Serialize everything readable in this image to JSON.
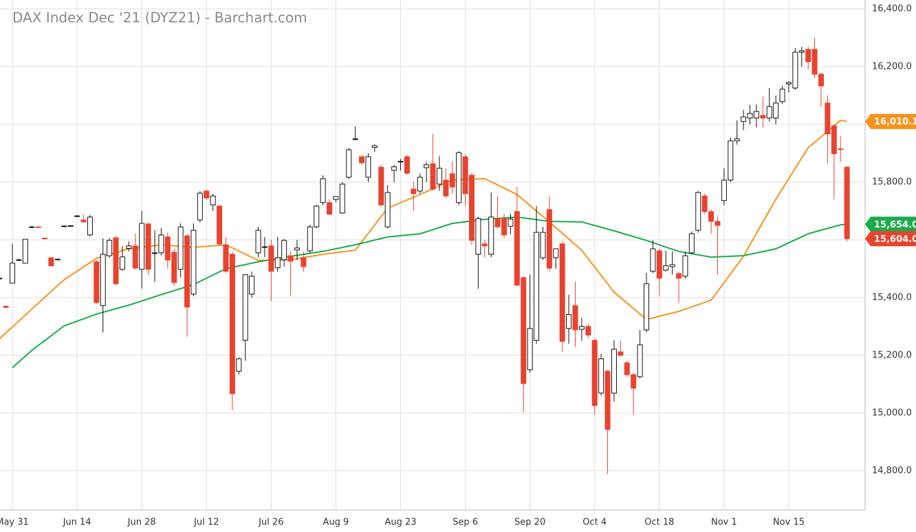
{
  "chart_data": {
    "type": "candlestick",
    "title": "DAX Index Dec '21 (DYZ21) - Barchart.com",
    "categories": [
      "May 27",
      "May 28",
      "May 31",
      "Jun 1",
      "Jun 2",
      "Jun 3",
      "Jun 4",
      "Jun 7",
      "Jun 8",
      "Jun 9",
      "Jun 10",
      "Jun 11",
      "Jun 14",
      "Jun 15",
      "Jun 16",
      "Jun 17",
      "Jun 18",
      "Jun 21",
      "Jun 22",
      "Jun 23",
      "Jun 24",
      "Jun 25",
      "Jun 28",
      "Jun 29",
      "Jun 30",
      "Jul 1",
      "Jul 2",
      "Jul 5",
      "Jul 6",
      "Jul 7",
      "Jul 8",
      "Jul 9",
      "Jul 12",
      "Jul 13",
      "Jul 14",
      "Jul 15",
      "Jul 16",
      "Jul 19",
      "Jul 20",
      "Jul 21",
      "Jul 22",
      "Jul 23",
      "Jul 26",
      "Jul 27",
      "Jul 28",
      "Jul 29",
      "Jul 30",
      "Aug 2",
      "Aug 3",
      "Aug 4",
      "Aug 5",
      "Aug 6",
      "Aug 9",
      "Aug 10",
      "Aug 11",
      "Aug 12",
      "Aug 13",
      "Aug 16",
      "Aug 17",
      "Aug 18",
      "Aug 19",
      "Aug 20",
      "Aug 23",
      "Aug 24",
      "Aug 25",
      "Aug 26",
      "Aug 27",
      "Aug 30",
      "Aug 31",
      "Sep 1",
      "Sep 2",
      "Sep 3",
      "Sep 6",
      "Sep 7",
      "Sep 8",
      "Sep 9",
      "Sep 10",
      "Sep 13",
      "Sep 14",
      "Sep 15",
      "Sep 16",
      "Sep 17",
      "Sep 20",
      "Sep 21",
      "Sep 22",
      "Sep 23",
      "Sep 24",
      "Sep 27",
      "Sep 28",
      "Sep 29",
      "Sep 30",
      "Oct 1",
      "Oct 4",
      "Oct 5",
      "Oct 6",
      "Oct 7",
      "Oct 8",
      "Oct 11",
      "Oct 12",
      "Oct 13",
      "Oct 14",
      "Oct 15",
      "Oct 18",
      "Oct 19",
      "Oct 20",
      "Oct 21",
      "Oct 22",
      "Oct 25",
      "Oct 26",
      "Oct 27",
      "Oct 28",
      "Oct 29",
      "Nov 1",
      "Nov 2",
      "Nov 3",
      "Nov 4",
      "Nov 5",
      "Nov 8",
      "Nov 9",
      "Nov 10",
      "Nov 11",
      "Nov 12",
      "Nov 15",
      "Nov 16",
      "Nov 17",
      "Nov 18",
      "Nov 19",
      "Nov 22",
      "Nov 23",
      "Nov 24",
      "Nov 25",
      "Nov 26"
    ],
    "ohlc": [
      [
        15467,
        15470,
        15464,
        15467
      ],
      [
        15370,
        15372,
        15363,
        15366
      ],
      [
        15450,
        15586,
        15450,
        15519
      ],
      [
        15531,
        15535,
        15527,
        15531
      ],
      [
        15519,
        15602,
        15519,
        15602
      ],
      [
        15645,
        15648,
        15642,
        15645
      ],
      [
        15645,
        15647,
        15643,
        15644
      ],
      [
        15606,
        15608,
        15603,
        15605
      ],
      [
        15538,
        15540,
        15508,
        15510
      ],
      [
        15533,
        15535,
        15531,
        15533
      ],
      [
        15648,
        15650,
        15646,
        15648
      ],
      [
        15648,
        15651,
        15646,
        15649
      ],
      [
        15683,
        15686,
        15680,
        15683
      ],
      [
        15669,
        15686,
        15660,
        15662
      ],
      [
        15617,
        15686,
        15612,
        15679
      ],
      [
        15524,
        15531,
        15378,
        15383
      ],
      [
        15372,
        15605,
        15279,
        15550
      ],
      [
        15545,
        15605,
        15538,
        15598
      ],
      [
        15607,
        15614,
        15443,
        15448
      ],
      [
        15498,
        15579,
        15493,
        15541
      ],
      [
        15570,
        15595,
        15560,
        15579
      ],
      [
        15579,
        15622,
        15498,
        15502
      ],
      [
        15498,
        15700,
        15431,
        15657
      ],
      [
        15655,
        15660,
        15479,
        15498
      ],
      [
        15555,
        15633,
        15455,
        15555
      ],
      [
        15555,
        15641,
        15546,
        15617
      ],
      [
        15610,
        15625,
        15500,
        15530
      ],
      [
        15557,
        15570,
        15440,
        15452
      ],
      [
        15498,
        15657,
        15470,
        15645
      ],
      [
        15614,
        15620,
        15264,
        15367
      ],
      [
        15412,
        15657,
        15405,
        15633
      ],
      [
        15669,
        15769,
        15660,
        15762
      ],
      [
        15769,
        15775,
        15740,
        15745
      ],
      [
        15721,
        15760,
        15700,
        15752
      ],
      [
        15717,
        15720,
        15580,
        15586
      ],
      [
        15583,
        15610,
        15485,
        15491
      ],
      [
        15550,
        15560,
        15010,
        15067
      ],
      [
        15145,
        15193,
        15133,
        15188
      ],
      [
        15252,
        15479,
        15181,
        15479
      ],
      [
        15412,
        15490,
        15400,
        15474
      ],
      [
        15555,
        15645,
        15540,
        15633
      ],
      [
        15574,
        15610,
        15540,
        15576
      ],
      [
        15579,
        15600,
        15388,
        15491
      ],
      [
        15503,
        15610,
        15490,
        15538
      ],
      [
        15531,
        15603,
        15507,
        15598
      ],
      [
        15545,
        15560,
        15407,
        15526
      ],
      [
        15565,
        15600,
        15530,
        15572
      ],
      [
        15538,
        15560,
        15490,
        15507
      ],
      [
        15562,
        15652,
        15555,
        15645
      ],
      [
        15645,
        15722,
        15640,
        15717
      ],
      [
        15729,
        15824,
        15720,
        15812
      ],
      [
        15729,
        15740,
        15685,
        15689
      ],
      [
        15740,
        15750,
        15730,
        15750
      ],
      [
        15693,
        15800,
        15690,
        15793
      ],
      [
        15817,
        15919,
        15810,
        15912
      ],
      [
        15950,
        15993,
        15945,
        15950
      ],
      [
        15888,
        15895,
        15860,
        15867
      ],
      [
        15817,
        15900,
        15800,
        15888
      ],
      [
        15920,
        15931,
        15905,
        15926
      ],
      [
        15852,
        15860,
        15715,
        15721
      ],
      [
        15645,
        15790,
        15640,
        15764
      ],
      [
        15841,
        15860,
        15800,
        15853
      ],
      [
        15870,
        15880,
        15840,
        15872
      ],
      [
        15888,
        15895,
        15825,
        15831
      ],
      [
        15776,
        15800,
        15700,
        15760
      ],
      [
        15769,
        15830,
        15760,
        15817
      ],
      [
        15850,
        15870,
        15800,
        15860
      ],
      [
        15864,
        15967,
        15770,
        15776
      ],
      [
        15793,
        15890,
        15770,
        15848
      ],
      [
        15807,
        15848,
        15745,
        15752
      ],
      [
        15829,
        15872,
        15760,
        15783
      ],
      [
        15729,
        15907,
        15720,
        15902
      ],
      [
        15888,
        15895,
        15717,
        15760
      ],
      [
        15824,
        15830,
        15583,
        15598
      ],
      [
        15550,
        15680,
        15431,
        15674
      ],
      [
        15586,
        15600,
        15540,
        15579
      ],
      [
        15550,
        15764,
        15540,
        15679
      ],
      [
        15674,
        15752,
        15640,
        15645
      ],
      [
        15674,
        15690,
        15605,
        15617
      ],
      [
        15647,
        15690,
        15620,
        15672
      ],
      [
        15698,
        15784,
        15440,
        15443
      ],
      [
        15469,
        15475,
        15002,
        15102
      ],
      [
        15150,
        15479,
        15140,
        15293
      ],
      [
        15252,
        15717,
        15240,
        15626
      ],
      [
        15538,
        15645,
        15530,
        15626
      ],
      [
        15705,
        15752,
        15490,
        15502
      ],
      [
        15538,
        15570,
        15500,
        15569
      ],
      [
        15586,
        15595,
        15212,
        15248
      ],
      [
        15293,
        15410,
        15240,
        15341
      ],
      [
        15372,
        15455,
        15229,
        15288
      ],
      [
        15290,
        15330,
        15250,
        15300
      ],
      [
        15300,
        15310,
        15260,
        15270
      ],
      [
        15252,
        15258,
        14995,
        15026
      ],
      [
        15069,
        15205,
        15060,
        15188
      ],
      [
        15145,
        15150,
        14788,
        14943
      ],
      [
        15069,
        15252,
        15040,
        15221
      ],
      [
        15212,
        15252,
        15195,
        15200
      ],
      [
        15174,
        15181,
        15125,
        15133
      ],
      [
        15133,
        15140,
        14995,
        15086
      ],
      [
        15126,
        15288,
        15120,
        15236
      ],
      [
        15288,
        15486,
        15280,
        15448
      ],
      [
        15491,
        15598,
        15485,
        15569
      ],
      [
        15562,
        15570,
        15407,
        15467
      ],
      [
        15495,
        15562,
        15490,
        15510
      ],
      [
        15507,
        15560,
        15480,
        15514
      ],
      [
        15483,
        15490,
        15383,
        15467
      ],
      [
        15474,
        15560,
        15465,
        15545
      ],
      [
        15555,
        15629,
        15550,
        15621
      ],
      [
        15633,
        15769,
        15625,
        15764
      ],
      [
        15752,
        15760,
        15690,
        15698
      ],
      [
        15698,
        15705,
        15621,
        15664
      ],
      [
        15664,
        15680,
        15479,
        15650
      ],
      [
        15736,
        15848,
        15720,
        15807
      ],
      [
        15807,
        15955,
        15800,
        15943
      ],
      [
        15943,
        16014,
        15930,
        15950
      ],
      [
        16010,
        16050,
        15980,
        16026
      ],
      [
        16022,
        16068,
        16000,
        16038
      ],
      [
        16022,
        16070,
        15990,
        16045
      ],
      [
        16031,
        16096,
        15990,
        16022
      ],
      [
        16022,
        16126,
        16010,
        16062
      ],
      [
        16022,
        16100,
        16000,
        16074
      ],
      [
        16079,
        16134,
        16070,
        16122
      ],
      [
        16140,
        16150,
        16110,
        16145
      ],
      [
        16126,
        16264,
        16120,
        16250
      ],
      [
        16250,
        16269,
        16200,
        16255
      ],
      [
        16260,
        16270,
        16190,
        16217
      ],
      [
        16260,
        16300,
        16160,
        16174
      ],
      [
        16174,
        16180,
        16062,
        16133
      ],
      [
        16074,
        16100,
        15864,
        15967
      ],
      [
        15995,
        16000,
        15740,
        15898
      ],
      [
        15915,
        15960,
        15870,
        15914
      ],
      [
        15852,
        15855,
        15595,
        15604
      ]
    ],
    "up_color": "#111111",
    "down_color": "#e8432e",
    "close_label": "15,604.0",
    "series": [
      {
        "color": "#f7931e",
        "x": [
          "May 27",
          "Jun 3",
          "Jun 10",
          "Jun 17",
          "Jun 24",
          "Jul 1",
          "Jul 8",
          "Jul 15",
          "Jul 22",
          "Jul 29",
          "Aug 5",
          "Aug 12",
          "Aug 19",
          "Aug 26",
          "Sep 2",
          "Sep 9",
          "Sep 16",
          "Sep 23",
          "Sep 30",
          "Oct 7",
          "Oct 14",
          "Oct 21",
          "Oct 28",
          "Nov 4",
          "Nov 11",
          "Nov 18",
          "Nov 25",
          "Nov 26"
        ],
        "values": [
          15257,
          15360,
          15462,
          15536,
          15569,
          15583,
          15574,
          15583,
          15529,
          15531,
          15550,
          15564,
          15710,
          15757,
          15807,
          15812,
          15757,
          15662,
          15564,
          15419,
          15324,
          15352,
          15391,
          15543,
          15741,
          15919,
          16014,
          16010.1
        ],
        "end_label": "16,010.1"
      },
      {
        "color": "#1aab4b",
        "x": [
          "May 31",
          "Jun 3",
          "Jun 10",
          "Jun 17",
          "Jun 24",
          "Jul 1",
          "Jul 8",
          "Jul 15",
          "Jul 22",
          "Jul 29",
          "Aug 5",
          "Aug 12",
          "Aug 19",
          "Aug 26",
          "Sep 2",
          "Sep 9",
          "Sep 16",
          "Sep 23",
          "Sep 30",
          "Oct 7",
          "Oct 14",
          "Oct 21",
          "Oct 28",
          "Nov 4",
          "Nov 11",
          "Nov 18",
          "Nov 25",
          "Nov 26"
        ],
        "values": [
          15157,
          15217,
          15302,
          15343,
          15374,
          15410,
          15445,
          15500,
          15524,
          15543,
          15560,
          15583,
          15610,
          15621,
          15657,
          15671,
          15679,
          15664,
          15662,
          15631,
          15598,
          15560,
          15540,
          15545,
          15569,
          15621,
          15652,
          15654.0
        ],
        "end_label": "15,654.0"
      }
    ],
    "ylim": [
      14664,
      16431
    ],
    "yticks": [
      {
        "value": 14800,
        "label": "14,800.0"
      },
      {
        "value": 15000,
        "label": "15,000.0"
      },
      {
        "value": 15200,
        "label": "15,200.0"
      },
      {
        "value": 15400,
        "label": "15,400.0"
      },
      {
        "value": 15600,
        "label": "15,600.0"
      },
      {
        "value": 15800,
        "label": "15,800.0"
      },
      {
        "value": 16000,
        "label": "16,000.0"
      },
      {
        "value": 16200,
        "label": "16,200.0"
      },
      {
        "value": 16400,
        "label": "16,400.0"
      }
    ],
    "xticks": [
      "May 31",
      "Jun 14",
      "Jun 28",
      "Jul 12",
      "Jul 26",
      "Aug 9",
      "Aug 23",
      "Sep 6",
      "Sep 20",
      "Oct 4",
      "Oct 18",
      "Nov 1",
      "Nov 15"
    ],
    "grid": true
  }
}
